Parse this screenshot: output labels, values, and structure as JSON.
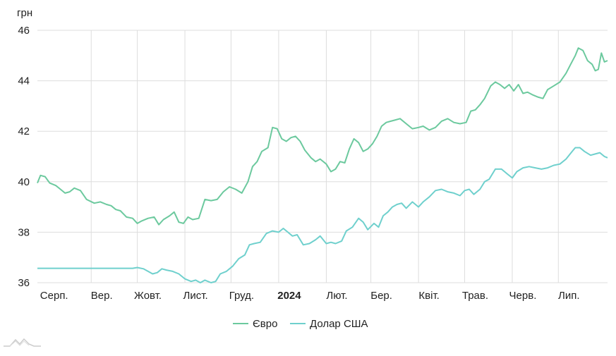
{
  "chart_data": {
    "type": "line",
    "unit_label": "грн",
    "ylim": [
      36,
      46
    ],
    "y_ticks": [
      36,
      38,
      40,
      42,
      44,
      46
    ],
    "x_ticks": [
      {
        "label": "Серп.",
        "date": "2023-08-01",
        "bold": false
      },
      {
        "label": "Вер.",
        "date": "2023-09-01",
        "bold": false
      },
      {
        "label": "Жовт.",
        "date": "2023-10-01",
        "bold": false
      },
      {
        "label": "Лист.",
        "date": "2023-11-01",
        "bold": false
      },
      {
        "label": "Груд.",
        "date": "2023-12-01",
        "bold": false
      },
      {
        "label": "2024",
        "date": "2024-01-01",
        "bold": true
      },
      {
        "label": "Лют.",
        "date": "2024-02-01",
        "bold": false
      },
      {
        "label": "Бер.",
        "date": "2024-03-01",
        "bold": false
      },
      {
        "label": "Квіт.",
        "date": "2024-04-01",
        "bold": false
      },
      {
        "label": "Трав.",
        "date": "2024-05-01",
        "bold": false
      },
      {
        "label": "Черв.",
        "date": "2024-06-01",
        "bold": false
      },
      {
        "label": "Лип.",
        "date": "2024-07-01",
        "bold": false
      }
    ],
    "x_range": [
      "2023-07-28",
      "2024-08-02"
    ],
    "grid": true,
    "legend_position": "bottom",
    "series": [
      {
        "name": "Євро",
        "color": "#6cc99e",
        "points": [
          [
            "2023-07-28",
            39.95
          ],
          [
            "2023-07-30",
            40.25
          ],
          [
            "2023-08-02",
            40.2
          ],
          [
            "2023-08-05",
            39.95
          ],
          [
            "2023-08-09",
            39.85
          ],
          [
            "2023-08-12",
            39.7
          ],
          [
            "2023-08-15",
            39.55
          ],
          [
            "2023-08-18",
            39.6
          ],
          [
            "2023-08-21",
            39.75
          ],
          [
            "2023-08-25",
            39.65
          ],
          [
            "2023-08-29",
            39.3
          ],
          [
            "2023-09-03",
            39.15
          ],
          [
            "2023-09-07",
            39.2
          ],
          [
            "2023-09-11",
            39.1
          ],
          [
            "2023-09-14",
            39.05
          ],
          [
            "2023-09-17",
            38.9
          ],
          [
            "2023-09-20",
            38.85
          ],
          [
            "2023-09-24",
            38.6
          ],
          [
            "2023-09-28",
            38.55
          ],
          [
            "2023-10-01",
            38.35
          ],
          [
            "2023-10-04",
            38.45
          ],
          [
            "2023-10-08",
            38.55
          ],
          [
            "2023-10-12",
            38.6
          ],
          [
            "2023-10-15",
            38.3
          ],
          [
            "2023-10-18",
            38.5
          ],
          [
            "2023-10-22",
            38.65
          ],
          [
            "2023-10-25",
            38.8
          ],
          [
            "2023-10-28",
            38.4
          ],
          [
            "2023-10-31",
            38.35
          ],
          [
            "2023-11-03",
            38.6
          ],
          [
            "2023-11-06",
            38.5
          ],
          [
            "2023-11-10",
            38.55
          ],
          [
            "2023-11-14",
            39.3
          ],
          [
            "2023-11-18",
            39.25
          ],
          [
            "2023-11-22",
            39.3
          ],
          [
            "2023-11-26",
            39.6
          ],
          [
            "2023-11-30",
            39.8
          ],
          [
            "2023-12-04",
            39.7
          ],
          [
            "2023-12-08",
            39.55
          ],
          [
            "2023-12-12",
            40.0
          ],
          [
            "2023-12-15",
            40.6
          ],
          [
            "2023-12-18",
            40.8
          ],
          [
            "2023-12-21",
            41.2
          ],
          [
            "2023-12-25",
            41.35
          ],
          [
            "2023-12-28",
            42.15
          ],
          [
            "2023-12-31",
            42.1
          ],
          [
            "2024-01-03",
            41.7
          ],
          [
            "2024-01-06",
            41.6
          ],
          [
            "2024-01-09",
            41.75
          ],
          [
            "2024-01-12",
            41.8
          ],
          [
            "2024-01-15",
            41.6
          ],
          [
            "2024-01-18",
            41.25
          ],
          [
            "2024-01-22",
            40.95
          ],
          [
            "2024-01-25",
            40.8
          ],
          [
            "2024-01-28",
            40.9
          ],
          [
            "2024-02-01",
            40.7
          ],
          [
            "2024-02-04",
            40.4
          ],
          [
            "2024-02-07",
            40.5
          ],
          [
            "2024-02-10",
            40.8
          ],
          [
            "2024-02-13",
            40.75
          ],
          [
            "2024-02-16",
            41.3
          ],
          [
            "2024-02-19",
            41.7
          ],
          [
            "2024-02-22",
            41.55
          ],
          [
            "2024-02-25",
            41.2
          ],
          [
            "2024-02-28",
            41.3
          ],
          [
            "2024-03-02",
            41.5
          ],
          [
            "2024-03-05",
            41.8
          ],
          [
            "2024-03-08",
            42.2
          ],
          [
            "2024-03-11",
            42.35
          ],
          [
            "2024-03-14",
            42.4
          ],
          [
            "2024-03-17",
            42.45
          ],
          [
            "2024-03-20",
            42.5
          ],
          [
            "2024-03-24",
            42.3
          ],
          [
            "2024-03-28",
            42.1
          ],
          [
            "2024-04-01",
            42.15
          ],
          [
            "2024-04-04",
            42.2
          ],
          [
            "2024-04-08",
            42.05
          ],
          [
            "2024-04-12",
            42.15
          ],
          [
            "2024-04-16",
            42.4
          ],
          [
            "2024-04-20",
            42.5
          ],
          [
            "2024-04-24",
            42.35
          ],
          [
            "2024-04-28",
            42.3
          ],
          [
            "2024-05-02",
            42.35
          ],
          [
            "2024-05-05",
            42.8
          ],
          [
            "2024-05-08",
            42.85
          ],
          [
            "2024-05-11",
            43.05
          ],
          [
            "2024-05-14",
            43.3
          ],
          [
            "2024-05-18",
            43.8
          ],
          [
            "2024-05-21",
            43.95
          ],
          [
            "2024-05-24",
            43.85
          ],
          [
            "2024-05-27",
            43.7
          ],
          [
            "2024-05-30",
            43.85
          ],
          [
            "2024-06-02",
            43.6
          ],
          [
            "2024-06-05",
            43.85
          ],
          [
            "2024-06-08",
            43.5
          ],
          [
            "2024-06-11",
            43.55
          ],
          [
            "2024-06-14",
            43.45
          ],
          [
            "2024-06-18",
            43.35
          ],
          [
            "2024-06-21",
            43.3
          ],
          [
            "2024-06-24",
            43.65
          ],
          [
            "2024-06-28",
            43.8
          ],
          [
            "2024-07-02",
            43.95
          ],
          [
            "2024-07-06",
            44.3
          ],
          [
            "2024-07-09",
            44.65
          ],
          [
            "2024-07-12",
            45.0
          ],
          [
            "2024-07-14",
            45.3
          ],
          [
            "2024-07-17",
            45.2
          ],
          [
            "2024-07-20",
            44.8
          ],
          [
            "2024-07-23",
            44.65
          ],
          [
            "2024-07-25",
            44.4
          ],
          [
            "2024-07-27",
            44.45
          ],
          [
            "2024-07-29",
            45.1
          ],
          [
            "2024-07-31",
            44.75
          ],
          [
            "2024-08-02",
            44.8
          ]
        ]
      },
      {
        "name": "Долар США",
        "color": "#6fd0cd",
        "points": [
          [
            "2023-07-28",
            36.57
          ],
          [
            "2023-08-15",
            36.57
          ],
          [
            "2023-09-01",
            36.57
          ],
          [
            "2023-09-15",
            36.57
          ],
          [
            "2023-09-28",
            36.57
          ],
          [
            "2023-10-01",
            36.6
          ],
          [
            "2023-10-05",
            36.55
          ],
          [
            "2023-10-08",
            36.45
          ],
          [
            "2023-10-11",
            36.35
          ],
          [
            "2023-10-14",
            36.4
          ],
          [
            "2023-10-17",
            36.55
          ],
          [
            "2023-10-20",
            36.5
          ],
          [
            "2023-10-24",
            36.45
          ],
          [
            "2023-10-28",
            36.35
          ],
          [
            "2023-11-01",
            36.15
          ],
          [
            "2023-11-05",
            36.05
          ],
          [
            "2023-11-08",
            36.1
          ],
          [
            "2023-11-11",
            36.0
          ],
          [
            "2023-11-14",
            36.1
          ],
          [
            "2023-11-18",
            36.0
          ],
          [
            "2023-11-21",
            36.05
          ],
          [
            "2023-11-24",
            36.35
          ],
          [
            "2023-11-28",
            36.45
          ],
          [
            "2023-12-02",
            36.65
          ],
          [
            "2023-12-06",
            36.95
          ],
          [
            "2023-12-10",
            37.1
          ],
          [
            "2023-12-13",
            37.5
          ],
          [
            "2023-12-16",
            37.55
          ],
          [
            "2023-12-20",
            37.6
          ],
          [
            "2023-12-24",
            37.95
          ],
          [
            "2023-12-28",
            38.05
          ],
          [
            "2024-01-01",
            38.0
          ],
          [
            "2024-01-04",
            38.15
          ],
          [
            "2024-01-07",
            38.0
          ],
          [
            "2024-01-10",
            37.85
          ],
          [
            "2024-01-13",
            37.9
          ],
          [
            "2024-01-17",
            37.5
          ],
          [
            "2024-01-21",
            37.55
          ],
          [
            "2024-01-25",
            37.7
          ],
          [
            "2024-01-28",
            37.85
          ],
          [
            "2024-02-01",
            37.55
          ],
          [
            "2024-02-04",
            37.6
          ],
          [
            "2024-02-07",
            37.55
          ],
          [
            "2024-02-11",
            37.65
          ],
          [
            "2024-02-14",
            38.05
          ],
          [
            "2024-02-18",
            38.2
          ],
          [
            "2024-02-22",
            38.55
          ],
          [
            "2024-02-25",
            38.4
          ],
          [
            "2024-02-28",
            38.1
          ],
          [
            "2024-03-03",
            38.35
          ],
          [
            "2024-03-06",
            38.2
          ],
          [
            "2024-03-09",
            38.65
          ],
          [
            "2024-03-12",
            38.8
          ],
          [
            "2024-03-15",
            39.0
          ],
          [
            "2024-03-18",
            39.1
          ],
          [
            "2024-03-21",
            39.15
          ],
          [
            "2024-03-24",
            38.95
          ],
          [
            "2024-03-28",
            39.2
          ],
          [
            "2024-04-01",
            39.0
          ],
          [
            "2024-04-04",
            39.2
          ],
          [
            "2024-04-08",
            39.4
          ],
          [
            "2024-04-12",
            39.65
          ],
          [
            "2024-04-16",
            39.7
          ],
          [
            "2024-04-20",
            39.6
          ],
          [
            "2024-04-24",
            39.55
          ],
          [
            "2024-04-28",
            39.45
          ],
          [
            "2024-05-01",
            39.65
          ],
          [
            "2024-05-04",
            39.7
          ],
          [
            "2024-05-07",
            39.5
          ],
          [
            "2024-05-11",
            39.7
          ],
          [
            "2024-05-14",
            40.0
          ],
          [
            "2024-05-17",
            40.1
          ],
          [
            "2024-05-21",
            40.5
          ],
          [
            "2024-05-25",
            40.5
          ],
          [
            "2024-05-29",
            40.3
          ],
          [
            "2024-06-01",
            40.15
          ],
          [
            "2024-06-04",
            40.4
          ],
          [
            "2024-06-08",
            40.55
          ],
          [
            "2024-06-12",
            40.6
          ],
          [
            "2024-06-16",
            40.55
          ],
          [
            "2024-06-20",
            40.5
          ],
          [
            "2024-06-24",
            40.55
          ],
          [
            "2024-06-28",
            40.65
          ],
          [
            "2024-07-02",
            40.7
          ],
          [
            "2024-07-06",
            40.9
          ],
          [
            "2024-07-10",
            41.2
          ],
          [
            "2024-07-12",
            41.35
          ],
          [
            "2024-07-15",
            41.35
          ],
          [
            "2024-07-18",
            41.2
          ],
          [
            "2024-07-22",
            41.05
          ],
          [
            "2024-07-25",
            41.1
          ],
          [
            "2024-07-28",
            41.15
          ],
          [
            "2024-07-31",
            41.0
          ],
          [
            "2024-08-02",
            40.95
          ]
        ]
      }
    ]
  }
}
